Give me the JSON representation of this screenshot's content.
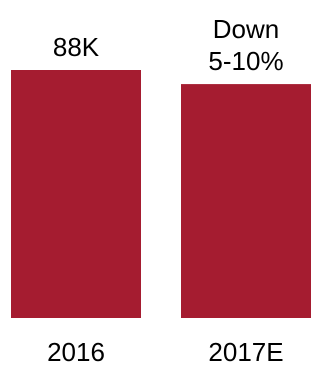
{
  "chart_data": {
    "type": "bar",
    "categories": [
      "2016",
      "2017E"
    ],
    "values": [
      88,
      83
    ],
    "value_unit": "K",
    "data_labels": [
      [
        "88K"
      ],
      [
        "Down",
        "5-10%"
      ]
    ],
    "ylim": [
      0,
      88
    ],
    "grid": false,
    "legend": "none",
    "bar_color": "#A51C30"
  }
}
